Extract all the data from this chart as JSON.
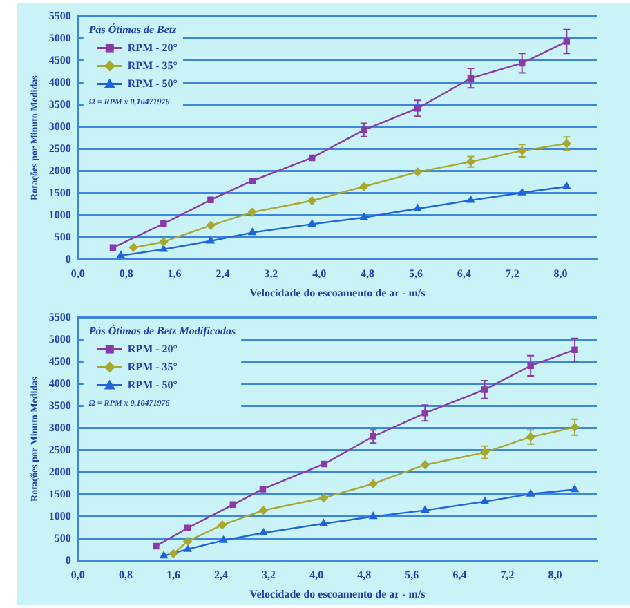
{
  "chart_data": [
    {
      "type": "line",
      "legend_title": "Pás Ótimas de Betz",
      "xlabel": "Velocidade do escoamento de ar - m/s",
      "ylabel": "Rotações por Minuto Medidas",
      "annotations": [
        "Ω = RPM x 0,10471976"
      ],
      "legend": "top left",
      "grid": "y",
      "xlim": [
        0,
        8.6
      ],
      "xticks": [
        {
          "value": 0,
          "label": "0,0"
        },
        {
          "value": 0.8,
          "label": "0,8"
        },
        {
          "value": 1.6,
          "label": "1,6"
        },
        {
          "value": 2.4,
          "label": "2,4"
        },
        {
          "value": 3.2,
          "label": "3,2"
        },
        {
          "value": 4,
          "label": "4,0"
        },
        {
          "value": 4.8,
          "label": "4,8"
        },
        {
          "value": 5.6,
          "label": "5,6"
        },
        {
          "value": 6.4,
          "label": "6,4"
        },
        {
          "value": 7.2,
          "label": "7,2"
        },
        {
          "value": 8,
          "label": "8,0"
        }
      ],
      "ylim": [
        0,
        5500
      ],
      "yticks": [
        0,
        500,
        1000,
        1500,
        2000,
        2500,
        3000,
        3500,
        4000,
        4500,
        5000,
        5500
      ],
      "series": [
        {
          "name": "RPM - 20°",
          "color": "#8a3aa8",
          "marker": "square",
          "x": [
            0.58,
            1.42,
            2.2,
            2.89,
            3.88,
            4.74,
            5.63,
            6.51,
            7.36,
            8.1
          ],
          "values": [
            270,
            810,
            1350,
            1780,
            2300,
            2930,
            3420,
            4100,
            4440,
            4930
          ],
          "errors": [
            null,
            null,
            null,
            null,
            null,
            150,
            180,
            220,
            220,
            270
          ]
        },
        {
          "name": "RPM - 35°",
          "color": "#a8a830",
          "marker": "diamond",
          "x": [
            0.92,
            1.42,
            2.2,
            2.89,
            3.88,
            4.74,
            5.63,
            6.51,
            7.36,
            8.1
          ],
          "values": [
            270,
            400,
            770,
            1070,
            1330,
            1650,
            1980,
            2210,
            2460,
            2620
          ],
          "errors": [
            null,
            null,
            null,
            null,
            null,
            null,
            null,
            120,
            140,
            150
          ]
        },
        {
          "name": "RPM - 50°",
          "color": "#1e64dc",
          "marker": "triangle",
          "x": [
            0.71,
            1.42,
            2.2,
            2.89,
            3.88,
            4.74,
            5.63,
            6.51,
            7.36,
            8.1
          ],
          "values": [
            90,
            230,
            420,
            610,
            800,
            950,
            1150,
            1340,
            1510,
            1650
          ]
        }
      ]
    },
    {
      "type": "line",
      "legend_title": "Pás Ótimas de Betz Modificadas",
      "xlabel": "Velocidade do escoamento de ar - m/s",
      "ylabel": "Rotações por Minuto Medidas",
      "annotations": [
        "Ω = RPM x 0,10471976"
      ],
      "legend": "top left",
      "grid": "y",
      "xlim": [
        0,
        8.7
      ],
      "xticks": [
        {
          "value": 0,
          "label": "0,0"
        },
        {
          "value": 0.8,
          "label": "0,8"
        },
        {
          "value": 1.6,
          "label": "1,6"
        },
        {
          "value": 2.4,
          "label": "2,4"
        },
        {
          "value": 3.2,
          "label": "3,2"
        },
        {
          "value": 4,
          "label": "4,0"
        },
        {
          "value": 4.8,
          "label": "4,8"
        },
        {
          "value": 5.6,
          "label": "5,6"
        },
        {
          "value": 6.4,
          "label": "6,4"
        },
        {
          "value": 7.2,
          "label": "7,2"
        },
        {
          "value": 8,
          "label": "8,0"
        }
      ],
      "ylim": [
        0,
        5500
      ],
      "yticks": [
        0,
        500,
        1000,
        1500,
        2000,
        2500,
        3000,
        3500,
        4000,
        4500,
        5000,
        5500
      ],
      "series": [
        {
          "name": "RPM - 20°",
          "color": "#8a3aa8",
          "marker": "square",
          "x": [
            1.31,
            1.84,
            2.6,
            3.1,
            4.13,
            4.95,
            5.82,
            6.82,
            7.59,
            8.33
          ],
          "values": [
            330,
            740,
            1270,
            1620,
            2190,
            2810,
            3340,
            3870,
            4410,
            4770
          ],
          "errors": [
            null,
            null,
            null,
            null,
            null,
            150,
            180,
            200,
            230,
            260
          ]
        },
        {
          "name": "RPM - 35°",
          "color": "#a8a830",
          "marker": "diamond",
          "x": [
            1.6,
            1.84,
            2.42,
            3.11,
            4.12,
            4.95,
            5.82,
            6.82,
            7.59,
            8.33
          ],
          "values": [
            160,
            440,
            810,
            1140,
            1420,
            1740,
            2170,
            2450,
            2800,
            3020
          ],
          "errors": [
            null,
            null,
            null,
            null,
            null,
            null,
            null,
            140,
            160,
            180
          ]
        },
        {
          "name": "RPM - 50°",
          "color": "#1e64dc",
          "marker": "triangle",
          "x": [
            1.44,
            1.84,
            2.44,
            3.11,
            4.12,
            4.95,
            5.82,
            6.82,
            7.59,
            8.33
          ],
          "values": [
            110,
            260,
            460,
            630,
            840,
            1000,
            1140,
            1340,
            1510,
            1610
          ]
        }
      ]
    }
  ]
}
